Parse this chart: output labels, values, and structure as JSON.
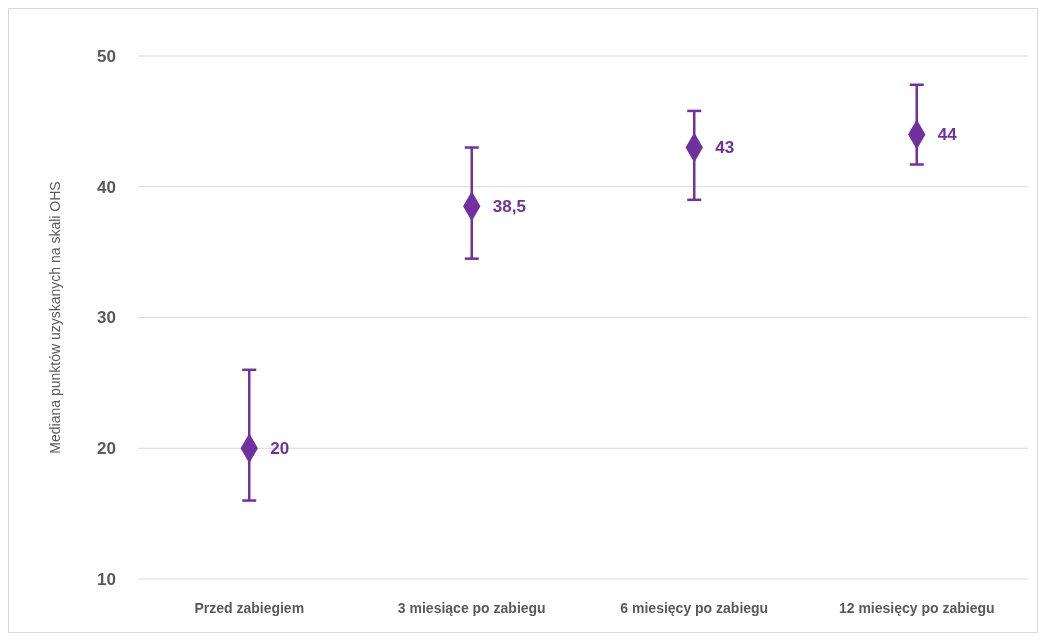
{
  "chart_data": {
    "type": "scatter",
    "ylabel": "Mediana punktów uzyskanych na skali OHS",
    "categories": [
      "Przed zabiegiem",
      "3 miesiące po zabiegu",
      "6 miesięcy po zabiegu",
      "12 miesięcy po zabiegu"
    ],
    "values": [
      20,
      38.5,
      43,
      44
    ],
    "errors": [
      [
        16,
        26
      ],
      [
        34.5,
        43
      ],
      [
        39,
        45.8
      ],
      [
        41.7,
        47.8
      ]
    ],
    "value_labels": [
      "20",
      "38,5",
      "43",
      "44"
    ],
    "color": "#7030a0",
    "marker": "diamond",
    "ylim": [
      10,
      50
    ],
    "yticks": [
      10,
      20,
      30,
      40,
      50
    ],
    "grid": "y"
  }
}
